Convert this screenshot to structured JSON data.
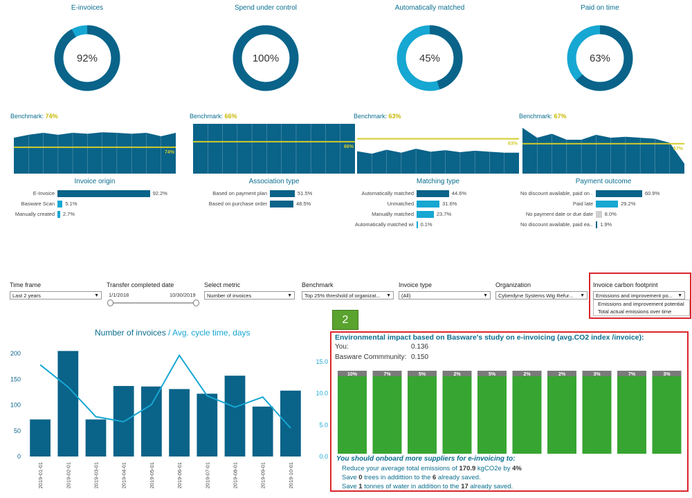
{
  "colors": {
    "dark": "#0a6389",
    "light": "#16a7d2",
    "yellow": "#d4cc2b",
    "green": "#37a531",
    "grey": "#7a7a7a"
  },
  "kpis": [
    {
      "title": "E-invoices",
      "pct_label": "92%",
      "value": 92,
      "bench_label": "Benchmark:",
      "bench_value": "74%",
      "bench_line_label": "74%",
      "sub_title": "Invoice origin",
      "rows": [
        {
          "label": "E-Invoice",
          "pct": "92.2%",
          "value": 92.2,
          "color": "dark"
        },
        {
          "label": "Basware Scan",
          "pct": "5.1%",
          "value": 5.1,
          "color": "light"
        },
        {
          "label": "Manually created",
          "pct": "2.7%",
          "value": 2.7,
          "color": "light"
        }
      ]
    },
    {
      "title": "Spend under control",
      "pct_label": "100%",
      "value": 100,
      "bench_label": "Benchmark:",
      "bench_value": "66%",
      "bench_line_label": "66%",
      "sub_title": "Association type",
      "rows": [
        {
          "label": "Based on payment plan",
          "pct": "51.5%",
          "value": 51.5,
          "color": "dark"
        },
        {
          "label": "Based on purchase order",
          "pct": "48.5%",
          "value": 48.5,
          "color": "dark"
        }
      ]
    },
    {
      "title": "Automatically matched",
      "pct_label": "45%",
      "value": 45,
      "bench_label": "Benchmark:",
      "bench_value": "63%",
      "bench_line_label": "63%",
      "sub_title": "Matching type",
      "rows": [
        {
          "label": "Automatically matched",
          "pct": "44.6%",
          "value": 44.6,
          "color": "dark"
        },
        {
          "label": "Unmatched",
          "pct": "31.6%",
          "value": 31.6,
          "color": "light"
        },
        {
          "label": "Manually matched",
          "pct": "23.7%",
          "value": 23.7,
          "color": "light"
        },
        {
          "label": "Automatically matched wit...",
          "pct": "0.1%",
          "value": 0.1,
          "color": "light"
        }
      ]
    },
    {
      "title": "Paid on time",
      "pct_label": "63%",
      "value": 63,
      "bench_label": "Benchmark:",
      "bench_value": "67%",
      "bench_line_label": "67%",
      "sub_title": "Payment outcome",
      "rows": [
        {
          "label": "No discount available, paid on ...",
          "pct": "60.9%",
          "value": 60.9,
          "color": "dark"
        },
        {
          "label": "Paid late",
          "pct": "29.2%",
          "value": 29.2,
          "color": "light"
        },
        {
          "label": "No payment date or due date",
          "pct": "8.0%",
          "value": 8.0,
          "color": "lightgrey"
        },
        {
          "label": "No discount available, paid ea...",
          "pct": "1.9%",
          "value": 1.9,
          "color": "dark"
        }
      ]
    }
  ],
  "filters": {
    "time_frame": {
      "label": "Time frame",
      "value": "Last 2 years"
    },
    "transfer": {
      "label": "Transfer completed date",
      "start": "1/1/2018",
      "end": "10/30/2019"
    },
    "metric": {
      "label": "Select metric",
      "value": "Number of invoices"
    },
    "benchmark": {
      "label": "Benchmark",
      "value": "Top 25% threshold of organizat..."
    },
    "invoice_type": {
      "label": "Invoice type",
      "value": "(All)"
    },
    "organization": {
      "label": "Organization",
      "value": "Cyberdyne Systems Wig Refur..."
    },
    "carbon": {
      "label": "Invoice carbon footprint",
      "value": "Emissions and improvement po...",
      "options": [
        "Emissions and improvement potential",
        "Total actual emissions over time"
      ]
    }
  },
  "badge": "2",
  "chart_data": [
    {
      "type": "bar",
      "title": "Number of invoices",
      "title_sep": " / ",
      "title2": "Avg. cycle time, days",
      "categories": [
        "2019-01-01",
        "2019-02-01",
        "2019-03-01",
        "2019-04-01",
        "2019-05-01",
        "2019-06-01",
        "2019-07-01",
        "2019-08-01",
        "2019-09-01",
        "2019-10-01"
      ],
      "series": [
        {
          "name": "Number of invoices",
          "values": [
            72,
            205,
            72,
            137,
            136,
            131,
            122,
            157,
            97,
            128
          ]
        },
        {
          "name": "Avg. cycle time, days",
          "values": [
            14.5,
            11.0,
            6.3,
            5.5,
            8.2,
            16.0,
            9.6,
            7.8,
            9.4,
            4.5
          ]
        }
      ],
      "y_ticks": [
        "0",
        "50",
        "100",
        "150",
        "200"
      ],
      "y2_ticks": [
        "0.0",
        "5.0",
        "10.0",
        "15.0"
      ],
      "ylim": [
        0,
        215
      ],
      "y2lim": [
        0,
        17.5
      ]
    },
    {
      "type": "bar",
      "title": "Environmental impact based on Basware's study on e-invoicing (avg.CO2 index /invoice):",
      "stacked_pct_labels": [
        "10%",
        "7%",
        "5%",
        "2%",
        "5%",
        "2%",
        "2%",
        "3%",
        "7%",
        "3%"
      ],
      "values": [
        10,
        7,
        5,
        2,
        5,
        2,
        2,
        3,
        7,
        3
      ]
    }
  ],
  "env": {
    "you_label": "You:",
    "you_value": "0.136",
    "community_label": "Basware Commmunity:",
    "community_value": "0.150",
    "onboard": "You should onboard more suppliers for e-invoicing to:",
    "l1_a": "Reduce your average total emissions of ",
    "l1_b": "170.9",
    "l1_c": " kgCO2e by ",
    "l1_d": "4%",
    "l2_a": "Save ",
    "l2_b": "0",
    "l2_c": " trees in addittion to the ",
    "l2_d": "6",
    "l2_e": " already saved.",
    "l3_a": "Save ",
    "l3_b": "1",
    "l3_c": " tonnes of water in addition to the ",
    "l3_d": "17",
    "l3_e": " already saved."
  }
}
